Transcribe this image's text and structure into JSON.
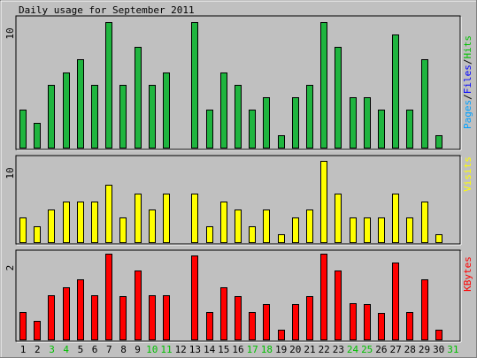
{
  "title": "Daily usage for September 2011",
  "colors": {
    "background": "#c0c0c0",
    "pages": "#00a0ff",
    "files": "#0000ff",
    "hits": "#00c000",
    "hits_bar": "#1fb53f",
    "visits": "#ffff00",
    "kbytes": "#ff0000",
    "weekend_label": "#00c000"
  },
  "chart_data": [
    {
      "type": "bar",
      "title": "Daily usage for September 2011",
      "legend": [
        "Pages",
        "Files",
        "Hits"
      ],
      "legend_separator": "/",
      "ylabel_tick": "10",
      "ylim": [
        0,
        10.2
      ],
      "categories": [
        "1",
        "2",
        "3",
        "4",
        "5",
        "6",
        "7",
        "8",
        "9",
        "10",
        "11",
        "12",
        "13",
        "14",
        "15",
        "16",
        "17",
        "18",
        "19",
        "20",
        "21",
        "22",
        "23",
        "24",
        "25",
        "26",
        "27",
        "28",
        "29",
        "30",
        "31"
      ],
      "series": [
        {
          "name": "Hits",
          "values": [
            3,
            2,
            5,
            6,
            7,
            5,
            10,
            5,
            8,
            5,
            6,
            0,
            10,
            3,
            6,
            5,
            3,
            4,
            1,
            4,
            5,
            10,
            8,
            4,
            4,
            3,
            9,
            3,
            7,
            1,
            0
          ]
        }
      ]
    },
    {
      "type": "bar",
      "legend": [
        "Visits"
      ],
      "ylabel_tick": "10",
      "ylim": [
        0,
        10.2
      ],
      "categories": [
        "1",
        "2",
        "3",
        "4",
        "5",
        "6",
        "7",
        "8",
        "9",
        "10",
        "11",
        "12",
        "13",
        "14",
        "15",
        "16",
        "17",
        "18",
        "19",
        "20",
        "21",
        "22",
        "23",
        "24",
        "25",
        "26",
        "27",
        "28",
        "29",
        "30",
        "31"
      ],
      "series": [
        {
          "name": "Visits",
          "values": [
            3,
            2,
            4,
            5,
            5,
            5,
            7,
            3,
            6,
            4,
            6,
            0,
            6,
            2,
            5,
            4,
            2,
            4,
            1,
            3,
            4,
            10,
            6,
            3,
            3,
            3,
            6,
            3,
            5,
            1,
            0
          ]
        }
      ]
    },
    {
      "type": "bar",
      "legend": [
        "KBytes"
      ],
      "ylabel_tick": "2",
      "ylim": [
        0,
        2.04
      ],
      "categories": [
        "1",
        "2",
        "3",
        "4",
        "5",
        "6",
        "7",
        "8",
        "9",
        "10",
        "11",
        "12",
        "13",
        "14",
        "15",
        "16",
        "17",
        "18",
        "19",
        "20",
        "21",
        "22",
        "23",
        "24",
        "25",
        "26",
        "27",
        "28",
        "29",
        "30",
        "31"
      ],
      "series": [
        {
          "name": "KBytes",
          "values": [
            0.65,
            0.44,
            1.05,
            1.25,
            1.43,
            1.05,
            2.04,
            1.03,
            1.63,
            1.05,
            1.05,
            0,
            2.0,
            0.65,
            1.25,
            1.02,
            0.65,
            0.84,
            0.24,
            0.84,
            1.03,
            2.04,
            1.63,
            0.86,
            0.84,
            0.63,
            1.84,
            0.65,
            1.43,
            0.24,
            0
          ]
        }
      ]
    }
  ],
  "weekend_days": [
    "3",
    "4",
    "10",
    "11",
    "17",
    "18",
    "24",
    "25",
    "31"
  ]
}
